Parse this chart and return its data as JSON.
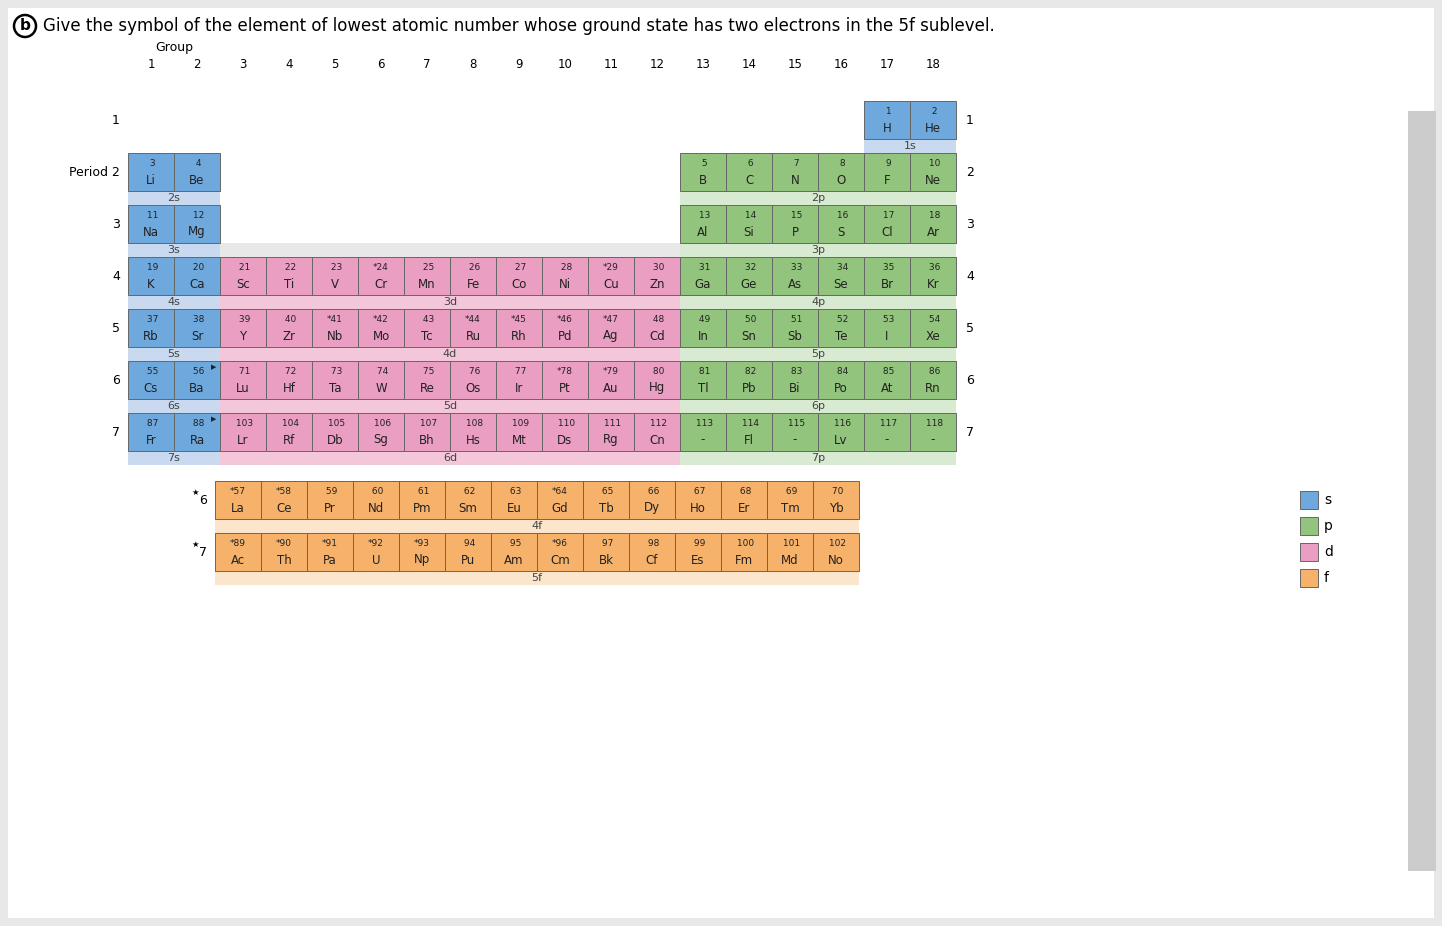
{
  "colors": {
    "s": "#6FA8DC",
    "s_band": "#C9DAF0",
    "p": "#93C47D",
    "p_band": "#D9EAD3",
    "d": "#EA9EC1",
    "d_band": "#F4C6DA",
    "f": "#F6B26B",
    "f_band": "#FCE5CD",
    "bg": "#FFFFFF",
    "page_bg": "#E8E8E8",
    "cell_border": "#666666",
    "text_dark": "#222222",
    "gray_bar": "#CCCCCC"
  },
  "elements_main": [
    {
      "num": 1,
      "sym": "H",
      "g": 17,
      "p": 1,
      "t": "s",
      "star": false
    },
    {
      "num": 2,
      "sym": "He",
      "g": 18,
      "p": 1,
      "t": "s",
      "star": false
    },
    {
      "num": 3,
      "sym": "Li",
      "g": 1,
      "p": 2,
      "t": "s",
      "star": false
    },
    {
      "num": 4,
      "sym": "Be",
      "g": 2,
      "p": 2,
      "t": "s",
      "star": false
    },
    {
      "num": 5,
      "sym": "B",
      "g": 13,
      "p": 2,
      "t": "p",
      "star": false
    },
    {
      "num": 6,
      "sym": "C",
      "g": 14,
      "p": 2,
      "t": "p",
      "star": false
    },
    {
      "num": 7,
      "sym": "N",
      "g": 15,
      "p": 2,
      "t": "p",
      "star": false
    },
    {
      "num": 8,
      "sym": "O",
      "g": 16,
      "p": 2,
      "t": "p",
      "star": false
    },
    {
      "num": 9,
      "sym": "F",
      "g": 17,
      "p": 2,
      "t": "p",
      "star": false
    },
    {
      "num": 10,
      "sym": "Ne",
      "g": 18,
      "p": 2,
      "t": "p",
      "star": false
    },
    {
      "num": 11,
      "sym": "Na",
      "g": 1,
      "p": 3,
      "t": "s",
      "star": false
    },
    {
      "num": 12,
      "sym": "Mg",
      "g": 2,
      "p": 3,
      "t": "s",
      "star": false
    },
    {
      "num": 13,
      "sym": "Al",
      "g": 13,
      "p": 3,
      "t": "p",
      "star": false
    },
    {
      "num": 14,
      "sym": "Si",
      "g": 14,
      "p": 3,
      "t": "p",
      "star": false
    },
    {
      "num": 15,
      "sym": "P",
      "g": 15,
      "p": 3,
      "t": "p",
      "star": false
    },
    {
      "num": 16,
      "sym": "S",
      "g": 16,
      "p": 3,
      "t": "p",
      "star": false
    },
    {
      "num": 17,
      "sym": "Cl",
      "g": 17,
      "p": 3,
      "t": "p",
      "star": false
    },
    {
      "num": 18,
      "sym": "Ar",
      "g": 18,
      "p": 3,
      "t": "p",
      "star": false
    },
    {
      "num": 19,
      "sym": "K",
      "g": 1,
      "p": 4,
      "t": "s",
      "star": false
    },
    {
      "num": 20,
      "sym": "Ca",
      "g": 2,
      "p": 4,
      "t": "s",
      "star": false
    },
    {
      "num": 21,
      "sym": "Sc",
      "g": 3,
      "p": 4,
      "t": "d",
      "star": false
    },
    {
      "num": 22,
      "sym": "Ti",
      "g": 4,
      "p": 4,
      "t": "d",
      "star": false
    },
    {
      "num": 23,
      "sym": "V",
      "g": 5,
      "p": 4,
      "t": "d",
      "star": false
    },
    {
      "num": 24,
      "sym": "Cr",
      "g": 6,
      "p": 4,
      "t": "d",
      "star": true
    },
    {
      "num": 25,
      "sym": "Mn",
      "g": 7,
      "p": 4,
      "t": "d",
      "star": false
    },
    {
      "num": 26,
      "sym": "Fe",
      "g": 8,
      "p": 4,
      "t": "d",
      "star": false
    },
    {
      "num": 27,
      "sym": "Co",
      "g": 9,
      "p": 4,
      "t": "d",
      "star": false
    },
    {
      "num": 28,
      "sym": "Ni",
      "g": 10,
      "p": 4,
      "t": "d",
      "star": false
    },
    {
      "num": 29,
      "sym": "Cu",
      "g": 11,
      "p": 4,
      "t": "d",
      "star": true
    },
    {
      "num": 30,
      "sym": "Zn",
      "g": 12,
      "p": 4,
      "t": "d",
      "star": false
    },
    {
      "num": 31,
      "sym": "Ga",
      "g": 13,
      "p": 4,
      "t": "p",
      "star": false
    },
    {
      "num": 32,
      "sym": "Ge",
      "g": 14,
      "p": 4,
      "t": "p",
      "star": false
    },
    {
      "num": 33,
      "sym": "As",
      "g": 15,
      "p": 4,
      "t": "p",
      "star": false
    },
    {
      "num": 34,
      "sym": "Se",
      "g": 16,
      "p": 4,
      "t": "p",
      "star": false
    },
    {
      "num": 35,
      "sym": "Br",
      "g": 17,
      "p": 4,
      "t": "p",
      "star": false
    },
    {
      "num": 36,
      "sym": "Kr",
      "g": 18,
      "p": 4,
      "t": "p",
      "star": false
    },
    {
      "num": 37,
      "sym": "Rb",
      "g": 1,
      "p": 5,
      "t": "s",
      "star": false
    },
    {
      "num": 38,
      "sym": "Sr",
      "g": 2,
      "p": 5,
      "t": "s",
      "star": false
    },
    {
      "num": 39,
      "sym": "Y",
      "g": 3,
      "p": 5,
      "t": "d",
      "star": false
    },
    {
      "num": 40,
      "sym": "Zr",
      "g": 4,
      "p": 5,
      "t": "d",
      "star": false
    },
    {
      "num": 41,
      "sym": "Nb",
      "g": 5,
      "p": 5,
      "t": "d",
      "star": true
    },
    {
      "num": 42,
      "sym": "Mo",
      "g": 6,
      "p": 5,
      "t": "d",
      "star": true
    },
    {
      "num": 43,
      "sym": "Tc",
      "g": 7,
      "p": 5,
      "t": "d",
      "star": false
    },
    {
      "num": 44,
      "sym": "Ru",
      "g": 8,
      "p": 5,
      "t": "d",
      "star": true
    },
    {
      "num": 45,
      "sym": "Rh",
      "g": 9,
      "p": 5,
      "t": "d",
      "star": true
    },
    {
      "num": 46,
      "sym": "Pd",
      "g": 10,
      "p": 5,
      "t": "d",
      "star": true
    },
    {
      "num": 47,
      "sym": "Ag",
      "g": 11,
      "p": 5,
      "t": "d",
      "star": true
    },
    {
      "num": 48,
      "sym": "Cd",
      "g": 12,
      "p": 5,
      "t": "d",
      "star": false
    },
    {
      "num": 49,
      "sym": "In",
      "g": 13,
      "p": 5,
      "t": "p",
      "star": false
    },
    {
      "num": 50,
      "sym": "Sn",
      "g": 14,
      "p": 5,
      "t": "p",
      "star": false
    },
    {
      "num": 51,
      "sym": "Sb",
      "g": 15,
      "p": 5,
      "t": "p",
      "star": false
    },
    {
      "num": 52,
      "sym": "Te",
      "g": 16,
      "p": 5,
      "t": "p",
      "star": false
    },
    {
      "num": 53,
      "sym": "I",
      "g": 17,
      "p": 5,
      "t": "p",
      "star": false
    },
    {
      "num": 54,
      "sym": "Xe",
      "g": 18,
      "p": 5,
      "t": "p",
      "star": false
    },
    {
      "num": 55,
      "sym": "Cs",
      "g": 1,
      "p": 6,
      "t": "s",
      "star": false
    },
    {
      "num": 56,
      "sym": "Ba",
      "g": 2,
      "p": 6,
      "t": "s",
      "star": false
    },
    {
      "num": 71,
      "sym": "Lu",
      "g": 3,
      "p": 6,
      "t": "d",
      "star": false
    },
    {
      "num": 72,
      "sym": "Hf",
      "g": 4,
      "p": 6,
      "t": "d",
      "star": false
    },
    {
      "num": 73,
      "sym": "Ta",
      "g": 5,
      "p": 6,
      "t": "d",
      "star": false
    },
    {
      "num": 74,
      "sym": "W",
      "g": 6,
      "p": 6,
      "t": "d",
      "star": false
    },
    {
      "num": 75,
      "sym": "Re",
      "g": 7,
      "p": 6,
      "t": "d",
      "star": false
    },
    {
      "num": 76,
      "sym": "Os",
      "g": 8,
      "p": 6,
      "t": "d",
      "star": false
    },
    {
      "num": 77,
      "sym": "Ir",
      "g": 9,
      "p": 6,
      "t": "d",
      "star": false
    },
    {
      "num": 78,
      "sym": "Pt",
      "g": 10,
      "p": 6,
      "t": "d",
      "star": true
    },
    {
      "num": 79,
      "sym": "Au",
      "g": 11,
      "p": 6,
      "t": "d",
      "star": true
    },
    {
      "num": 80,
      "sym": "Hg",
      "g": 12,
      "p": 6,
      "t": "d",
      "star": false
    },
    {
      "num": 81,
      "sym": "Tl",
      "g": 13,
      "p": 6,
      "t": "p",
      "star": false
    },
    {
      "num": 82,
      "sym": "Pb",
      "g": 14,
      "p": 6,
      "t": "p",
      "star": false
    },
    {
      "num": 83,
      "sym": "Bi",
      "g": 15,
      "p": 6,
      "t": "p",
      "star": false
    },
    {
      "num": 84,
      "sym": "Po",
      "g": 16,
      "p": 6,
      "t": "p",
      "star": false
    },
    {
      "num": 85,
      "sym": "At",
      "g": 17,
      "p": 6,
      "t": "p",
      "star": false
    },
    {
      "num": 86,
      "sym": "Rn",
      "g": 18,
      "p": 6,
      "t": "p",
      "star": false
    },
    {
      "num": 87,
      "sym": "Fr",
      "g": 1,
      "p": 7,
      "t": "s",
      "star": false
    },
    {
      "num": 88,
      "sym": "Ra",
      "g": 2,
      "p": 7,
      "t": "s",
      "star": false
    },
    {
      "num": 103,
      "sym": "Lr",
      "g": 3,
      "p": 7,
      "t": "d",
      "star": false
    },
    {
      "num": 104,
      "sym": "Rf",
      "g": 4,
      "p": 7,
      "t": "d",
      "star": false
    },
    {
      "num": 105,
      "sym": "Db",
      "g": 5,
      "p": 7,
      "t": "d",
      "star": false
    },
    {
      "num": 106,
      "sym": "Sg",
      "g": 6,
      "p": 7,
      "t": "d",
      "star": false
    },
    {
      "num": 107,
      "sym": "Bh",
      "g": 7,
      "p": 7,
      "t": "d",
      "star": false
    },
    {
      "num": 108,
      "sym": "Hs",
      "g": 8,
      "p": 7,
      "t": "d",
      "star": false
    },
    {
      "num": 109,
      "sym": "Mt",
      "g": 9,
      "p": 7,
      "t": "d",
      "star": false
    },
    {
      "num": 110,
      "sym": "Ds",
      "g": 10,
      "p": 7,
      "t": "d",
      "star": false
    },
    {
      "num": 111,
      "sym": "Rg",
      "g": 11,
      "p": 7,
      "t": "d",
      "star": false
    },
    {
      "num": 112,
      "sym": "Cn",
      "g": 12,
      "p": 7,
      "t": "d",
      "star": false
    },
    {
      "num": 113,
      "sym": "-",
      "g": 13,
      "p": 7,
      "t": "p",
      "star": false
    },
    {
      "num": 114,
      "sym": "Fl",
      "g": 14,
      "p": 7,
      "t": "p",
      "star": false
    },
    {
      "num": 115,
      "sym": "-",
      "g": 15,
      "p": 7,
      "t": "p",
      "star": false
    },
    {
      "num": 116,
      "sym": "Lv",
      "g": 16,
      "p": 7,
      "t": "p",
      "star": false
    },
    {
      "num": 117,
      "sym": "-",
      "g": 17,
      "p": 7,
      "t": "p",
      "star": false
    },
    {
      "num": 118,
      "sym": "-",
      "g": 18,
      "p": 7,
      "t": "p",
      "star": false
    }
  ],
  "elements_f": [
    {
      "num": 57,
      "sym": "La",
      "fc": 1,
      "p": 6,
      "star": true
    },
    {
      "num": 58,
      "sym": "Ce",
      "fc": 2,
      "p": 6,
      "star": true
    },
    {
      "num": 59,
      "sym": "Pr",
      "fc": 3,
      "p": 6,
      "star": false
    },
    {
      "num": 60,
      "sym": "Nd",
      "fc": 4,
      "p": 6,
      "star": false
    },
    {
      "num": 61,
      "sym": "Pm",
      "fc": 5,
      "p": 6,
      "star": false
    },
    {
      "num": 62,
      "sym": "Sm",
      "fc": 6,
      "p": 6,
      "star": false
    },
    {
      "num": 63,
      "sym": "Eu",
      "fc": 7,
      "p": 6,
      "star": false
    },
    {
      "num": 64,
      "sym": "Gd",
      "fc": 8,
      "p": 6,
      "star": true
    },
    {
      "num": 65,
      "sym": "Tb",
      "fc": 9,
      "p": 6,
      "star": false
    },
    {
      "num": 66,
      "sym": "Dy",
      "fc": 10,
      "p": 6,
      "star": false
    },
    {
      "num": 67,
      "sym": "Ho",
      "fc": 11,
      "p": 6,
      "star": false
    },
    {
      "num": 68,
      "sym": "Er",
      "fc": 12,
      "p": 6,
      "star": false
    },
    {
      "num": 69,
      "sym": "Tm",
      "fc": 13,
      "p": 6,
      "star": false
    },
    {
      "num": 70,
      "sym": "Yb",
      "fc": 14,
      "p": 6,
      "star": false
    },
    {
      "num": 89,
      "sym": "Ac",
      "fc": 1,
      "p": 7,
      "star": true
    },
    {
      "num": 90,
      "sym": "Th",
      "fc": 2,
      "p": 7,
      "star": true
    },
    {
      "num": 91,
      "sym": "Pa",
      "fc": 3,
      "p": 7,
      "star": true
    },
    {
      "num": 92,
      "sym": "U",
      "fc": 4,
      "p": 7,
      "star": true
    },
    {
      "num": 93,
      "sym": "Np",
      "fc": 5,
      "p": 7,
      "star": true
    },
    {
      "num": 94,
      "sym": "Pu",
      "fc": 6,
      "p": 7,
      "star": false
    },
    {
      "num": 95,
      "sym": "Am",
      "fc": 7,
      "p": 7,
      "star": false
    },
    {
      "num": 96,
      "sym": "Cm",
      "fc": 8,
      "p": 7,
      "star": true
    },
    {
      "num": 97,
      "sym": "Bk",
      "fc": 9,
      "p": 7,
      "star": false
    },
    {
      "num": 98,
      "sym": "Cf",
      "fc": 10,
      "p": 7,
      "star": false
    },
    {
      "num": 99,
      "sym": "Es",
      "fc": 11,
      "p": 7,
      "star": false
    },
    {
      "num": 100,
      "sym": "Fm",
      "fc": 12,
      "p": 7,
      "star": false
    },
    {
      "num": 101,
      "sym": "Md",
      "fc": 13,
      "p": 7,
      "star": false
    },
    {
      "num": 102,
      "sym": "No",
      "fc": 14,
      "p": 7,
      "star": false
    }
  ]
}
